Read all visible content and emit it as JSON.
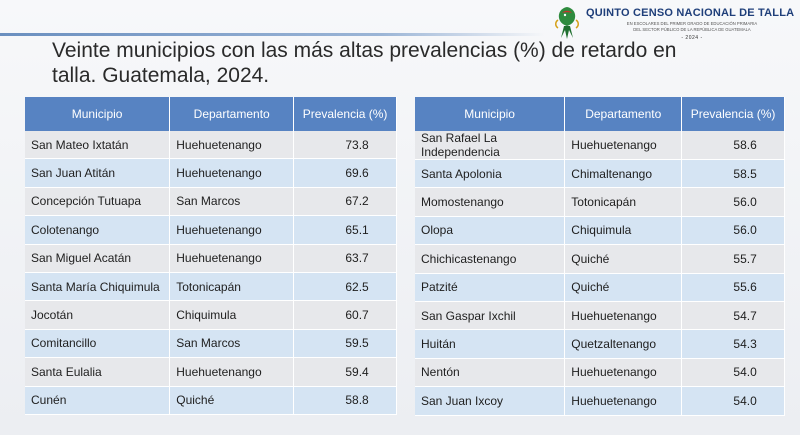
{
  "logo": {
    "title": "QUINTO CENSO NACIONAL DE TALLA",
    "subtitle_1": "EN ESCOLARES DEL PRIMER GRADO DE EDUCACIÓN PRIMARIA",
    "subtitle_2": "DEL SECTOR PÚBLICO DE LA REPÚBLICA DE GUATEMALA",
    "year": "- 2024 -"
  },
  "title_line1": "Veinte municipios con las más altas prevalencias (%) de retardo en",
  "title_line2": "talla. Guatemala, 2024.",
  "headers": {
    "municipio": "Municipio",
    "departamento": "Departamento",
    "prevalencia": "Prevalencia (%)"
  },
  "left_rows": [
    {
      "municipio": "San Mateo Ixtatán",
      "departamento": "Huehuetenango",
      "prevalencia": "73.8"
    },
    {
      "municipio": "San Juan Atitán",
      "departamento": "Huehuetenango",
      "prevalencia": "69.6"
    },
    {
      "municipio": "Concepción Tutuapa",
      "departamento": "San Marcos",
      "prevalencia": "67.2"
    },
    {
      "municipio": "Colotenango",
      "departamento": "Huehuetenango",
      "prevalencia": "65.1"
    },
    {
      "municipio": "San Miguel Acatán",
      "departamento": "Huehuetenango",
      "prevalencia": "63.7"
    },
    {
      "municipio": "Santa María Chiquimula",
      "departamento": "Totonicapán",
      "prevalencia": "62.5"
    },
    {
      "municipio": "Jocotán",
      "departamento": "Chiquimula",
      "prevalencia": "60.7"
    },
    {
      "municipio": "Comitancillo",
      "departamento": "San Marcos",
      "prevalencia": "59.5"
    },
    {
      "municipio": "Santa Eulalia",
      "departamento": "Huehuetenango",
      "prevalencia": "59.4"
    },
    {
      "municipio": "Cunén",
      "departamento": "Quiché",
      "prevalencia": "58.8"
    }
  ],
  "right_rows": [
    {
      "municipio_a": "San Rafael La",
      "municipio_b": "Independencia",
      "departamento": "Huehuetenango",
      "prevalencia": "58.6"
    },
    {
      "municipio": "Santa Apolonia",
      "departamento": "Chimaltenango",
      "prevalencia": "58.5"
    },
    {
      "municipio": "Momostenango",
      "departamento": "Totonicapán",
      "prevalencia": "56.0"
    },
    {
      "municipio": "Olopa",
      "departamento": "Chiquimula",
      "prevalencia": "56.0"
    },
    {
      "municipio": "Chichicastenango",
      "departamento": "Quiché",
      "prevalencia": "55.7"
    },
    {
      "municipio": "Patzité",
      "departamento": "Quiché",
      "prevalencia": "55.6"
    },
    {
      "municipio": "San Gaspar Ixchil",
      "departamento": "Huehuetenango",
      "prevalencia": "54.7"
    },
    {
      "municipio": "Huitán",
      "departamento": "Quetzaltenango",
      "prevalencia": "54.3"
    },
    {
      "municipio": "Nentón",
      "departamento": "Huehuetenango",
      "prevalencia": "54.0"
    },
    {
      "municipio": "San Juan Ixcoy",
      "departamento": "Huehuetenango",
      "prevalencia": "54.0"
    }
  ],
  "colors": {
    "header": "#5783c2",
    "row_gray": "#e7e8eb",
    "row_blue": "#d5e4f3"
  }
}
